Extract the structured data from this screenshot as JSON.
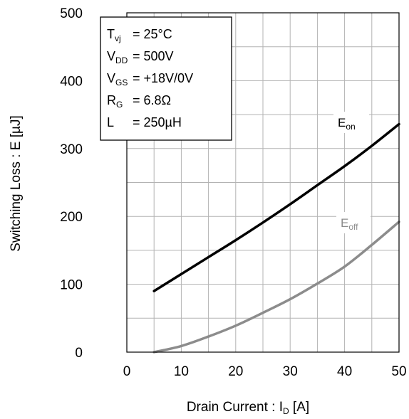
{
  "chart_data": {
    "type": "line",
    "xlabel": {
      "main": "Drain Current : I",
      "sub": "D",
      "tail": " [A]"
    },
    "ylabel": "Switching Loss : E [µJ]",
    "xlim": [
      0,
      50
    ],
    "ylim": [
      0,
      500
    ],
    "x_ticks": [
      "0",
      "10",
      "20",
      "30",
      "40",
      "50"
    ],
    "y_ticks": [
      "0",
      "100",
      "200",
      "300",
      "400",
      "500"
    ],
    "grid": true,
    "conditions": [
      {
        "sym": "T",
        "sub": "vj",
        "value": " = 25°C"
      },
      {
        "sym": "V",
        "sub": "DD",
        "value": " = 500V"
      },
      {
        "sym": "V",
        "sub": "GS",
        "value": " = +18V/0V"
      },
      {
        "sym": "R",
        "sub": "G",
        "value": " = 6.8Ω"
      },
      {
        "sym": "L",
        "sub": "",
        "value": " = 250µH"
      }
    ],
    "series": [
      {
        "name": {
          "main": "E",
          "sub": "on"
        },
        "color": "#000000",
        "x": [
          5,
          10,
          15,
          20,
          25,
          30,
          35,
          40,
          45,
          50
        ],
        "y": [
          90,
          115,
          140,
          165,
          191,
          218,
          246,
          274,
          304,
          336
        ]
      },
      {
        "name": {
          "main": "E",
          "sub": "off"
        },
        "color": "#8c8c8c",
        "x": [
          5,
          10,
          15,
          20,
          25,
          30,
          35,
          40,
          45,
          50
        ],
        "y": [
          0,
          9,
          23,
          39,
          58,
          78,
          101,
          126,
          158,
          192
        ]
      }
    ]
  }
}
